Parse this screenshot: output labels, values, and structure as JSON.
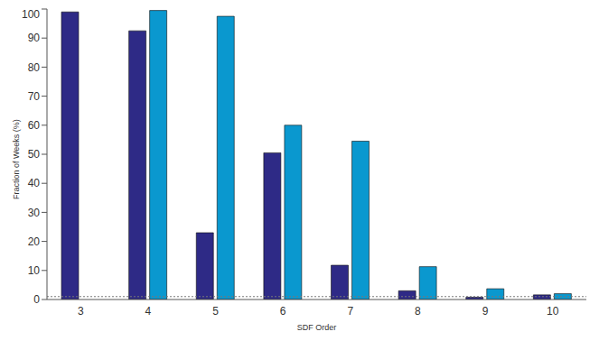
{
  "chart_data": {
    "type": "bar",
    "x_label": "SDF Order",
    "y_label": "Fraction of Weeks (%)",
    "categories": [
      "3",
      "4",
      "5",
      "6",
      "7",
      "8",
      "9",
      "10"
    ],
    "series": [
      {
        "color": "#2e2a86",
        "values": [
          99,
          92.5,
          23,
          50.5,
          11.8,
          3,
          0.8,
          1.6
        ]
      },
      {
        "color": "#0a98cf",
        "values": [
          null,
          99.5,
          97.5,
          60,
          54.5,
          11.3,
          3.7,
          2
        ]
      }
    ],
    "ylim": [
      0,
      100
    ],
    "yticks": [
      0,
      10,
      20,
      30,
      40,
      50,
      60,
      70,
      80,
      90,
      100
    ],
    "hline": 1,
    "grid": false
  }
}
